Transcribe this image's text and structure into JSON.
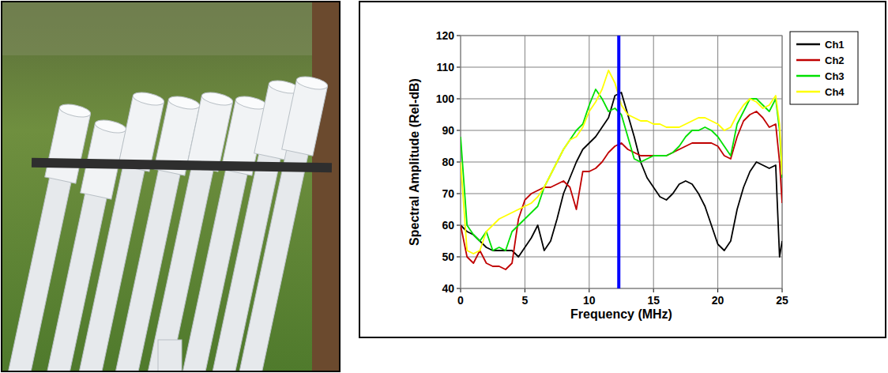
{
  "chart_data": {
    "type": "line",
    "xlabel": "Frequency (MHz)",
    "ylabel": "Spectral Amplitude (Rel-dB)",
    "x": [
      0,
      0.5,
      1,
      1.5,
      2,
      2.5,
      3,
      3.5,
      4,
      4.5,
      5,
      5.5,
      6,
      6.5,
      7,
      7.5,
      8,
      8.5,
      9,
      9.5,
      10,
      10.5,
      11,
      11.5,
      12,
      12.5,
      13,
      13.5,
      14,
      14.5,
      15,
      15.5,
      16,
      16.5,
      17,
      17.5,
      18,
      18.5,
      19,
      19.5,
      20,
      20.5,
      21,
      21.5,
      22,
      22.5,
      23,
      23.5,
      24,
      24.5,
      24.8,
      25
    ],
    "series": [
      {
        "name": "Ch1",
        "color": "#000000",
        "values": [
          60,
          58,
          57,
          55,
          53,
          52,
          52,
          52,
          52,
          50,
          53,
          56,
          60,
          52,
          55,
          62,
          70,
          75,
          80,
          84,
          86,
          88,
          91,
          94,
          101,
          102,
          95,
          88,
          80,
          75,
          72,
          69,
          68,
          70,
          73,
          74,
          73,
          70,
          66,
          60,
          54,
          52,
          55,
          65,
          72,
          77,
          80,
          79,
          78,
          79,
          50,
          55
        ]
      },
      {
        "name": "Ch2",
        "color": "#c00000",
        "values": [
          60,
          50,
          48,
          52,
          48,
          47,
          47,
          46,
          48,
          62,
          68,
          70,
          71,
          72,
          72,
          73,
          74,
          72,
          65,
          77,
          77,
          78,
          80,
          83,
          85,
          86,
          84,
          83,
          82,
          82,
          82,
          82,
          82,
          83,
          84,
          85,
          86,
          86,
          86,
          86,
          85,
          82,
          81,
          88,
          93,
          95,
          96,
          94,
          91,
          92,
          80,
          67
        ]
      },
      {
        "name": "Ch3",
        "color": "#00e000",
        "values": [
          88,
          60,
          57,
          55,
          58,
          52,
          53,
          52,
          58,
          60,
          62,
          64,
          66,
          72,
          76,
          80,
          84,
          87,
          90,
          92,
          98,
          103,
          100,
          96,
          97,
          95,
          88,
          81,
          80,
          81,
          82,
          82,
          82,
          83,
          85,
          88,
          90,
          90,
          91,
          90,
          88,
          85,
          82,
          92,
          96,
          100,
          100,
          98,
          96,
          100,
          90,
          75
        ]
      },
      {
        "name": "Ch4",
        "color": "#ffff00",
        "values": [
          80,
          52,
          51,
          52,
          58,
          60,
          62,
          63,
          64,
          65,
          66,
          67,
          69,
          72,
          76,
          80,
          84,
          87,
          88,
          91,
          96,
          99,
          103,
          109,
          105,
          98,
          95,
          94,
          93,
          93,
          92,
          92,
          91,
          91,
          91,
          92,
          93,
          94,
          94,
          93,
          92,
          90,
          91,
          95,
          98,
          100,
          99,
          97,
          98,
          101,
          92,
          76
        ]
      }
    ],
    "xlim": [
      0,
      25
    ],
    "xticks": [
      0,
      5,
      10,
      15,
      20,
      25
    ],
    "ylim": [
      40,
      120
    ],
    "yticks": [
      40,
      50,
      60,
      70,
      80,
      90,
      100,
      110,
      120
    ],
    "grid": true,
    "legend": "right",
    "vline": {
      "x": 12.3,
      "color": "#0000ff"
    }
  }
}
